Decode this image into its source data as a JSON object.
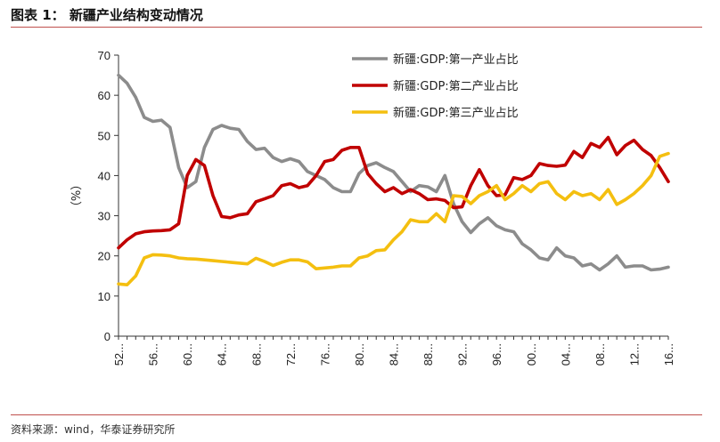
{
  "figure": {
    "title": "图表 1：  新疆产业结构变动情况",
    "source": "资料来源：wind，华泰证券研究所"
  },
  "chart_data": {
    "type": "line",
    "title": "",
    "xlabel": "",
    "ylabel": "（%）",
    "ylim": [
      0,
      70
    ],
    "yticks": [
      0,
      10,
      20,
      30,
      40,
      50,
      60,
      70
    ],
    "xticks": [
      "52...",
      "56...",
      "60...",
      "64...",
      "68...",
      "72...",
      "76...",
      "80...",
      "84...",
      "88...",
      "92...",
      "96...",
      "00...",
      "04...",
      "08...",
      "12...",
      "16..."
    ],
    "grid": false,
    "legend_position": "top-right",
    "x": [
      1952,
      1953,
      1954,
      1955,
      1956,
      1957,
      1958,
      1959,
      1960,
      1961,
      1962,
      1963,
      1964,
      1965,
      1966,
      1967,
      1968,
      1969,
      1970,
      1971,
      1972,
      1973,
      1974,
      1975,
      1976,
      1977,
      1978,
      1979,
      1980,
      1981,
      1982,
      1983,
      1984,
      1985,
      1986,
      1987,
      1988,
      1989,
      1990,
      1991,
      1992,
      1993,
      1994,
      1995,
      1996,
      1997,
      1998,
      1999,
      2000,
      2001,
      2002,
      2003,
      2004,
      2005,
      2006,
      2007,
      2008,
      2009,
      2010,
      2011,
      2012,
      2013,
      2014,
      2015,
      2016
    ],
    "series": [
      {
        "name": "新疆:GDP:第一产业占比",
        "color": "#8c8c8c",
        "values": [
          65,
          63,
          59.5,
          54.5,
          53.5,
          53.8,
          52,
          42,
          37,
          38.5,
          47,
          51.5,
          52.5,
          51.8,
          51.5,
          48.5,
          46.5,
          46.8,
          44.5,
          43.5,
          44.2,
          43.5,
          41,
          40,
          39,
          37,
          36,
          36,
          40.5,
          42.5,
          43.2,
          42,
          41,
          38.5,
          36,
          37.5,
          37.2,
          36,
          40,
          33,
          28.5,
          25.8,
          28,
          29.5,
          27.5,
          26.5,
          26,
          23,
          21.5,
          19.5,
          19,
          22,
          20,
          19.5,
          17.5,
          18,
          16.5,
          18,
          20,
          17.2,
          17.5,
          17.5,
          16.5,
          16.7,
          17.2
        ]
      },
      {
        "name": "新疆:GDP:第二产业占比",
        "color": "#c00000",
        "values": [
          22,
          24,
          25.5,
          26,
          26.2,
          26.3,
          26.5,
          28,
          40,
          44,
          42.5,
          35,
          29.8,
          29.5,
          30.2,
          30.5,
          33.5,
          34.2,
          35,
          37.5,
          38,
          37,
          37.5,
          40,
          43.5,
          44,
          46.3,
          47,
          47,
          40.5,
          38,
          36,
          37,
          35.5,
          36.5,
          35.5,
          34,
          34.2,
          33.8,
          32,
          32.2,
          37.5,
          41.5,
          37.5,
          35,
          35.2,
          39.5,
          39,
          40,
          43,
          42.5,
          42.3,
          42.6,
          46,
          44.5,
          48,
          47,
          49.5,
          45.2,
          47.5,
          48.8,
          46.5,
          45,
          42,
          38.5
        ]
      },
      {
        "name": "新疆:GDP:第三产业占比",
        "color": "#f4bf10",
        "values": [
          13,
          12.8,
          15,
          19.5,
          20.3,
          20.2,
          20,
          19.5,
          19.3,
          19.2,
          19,
          18.8,
          18.6,
          18.4,
          18.2,
          18,
          19.4,
          18.6,
          17.6,
          18.4,
          19,
          19,
          18.5,
          16.8,
          17,
          17.2,
          17.5,
          17.5,
          19.5,
          20,
          21.3,
          21.5,
          24,
          26,
          29,
          28.5,
          28.5,
          30.5,
          28.5,
          35,
          34.8,
          33,
          35,
          36,
          37.5,
          34,
          35.5,
          37.5,
          36,
          38,
          38.5,
          35.5,
          34,
          36,
          35,
          35.5,
          34,
          36.5,
          32.8,
          34,
          35.5,
          37.5,
          40,
          44.8,
          45.5
        ]
      }
    ]
  }
}
